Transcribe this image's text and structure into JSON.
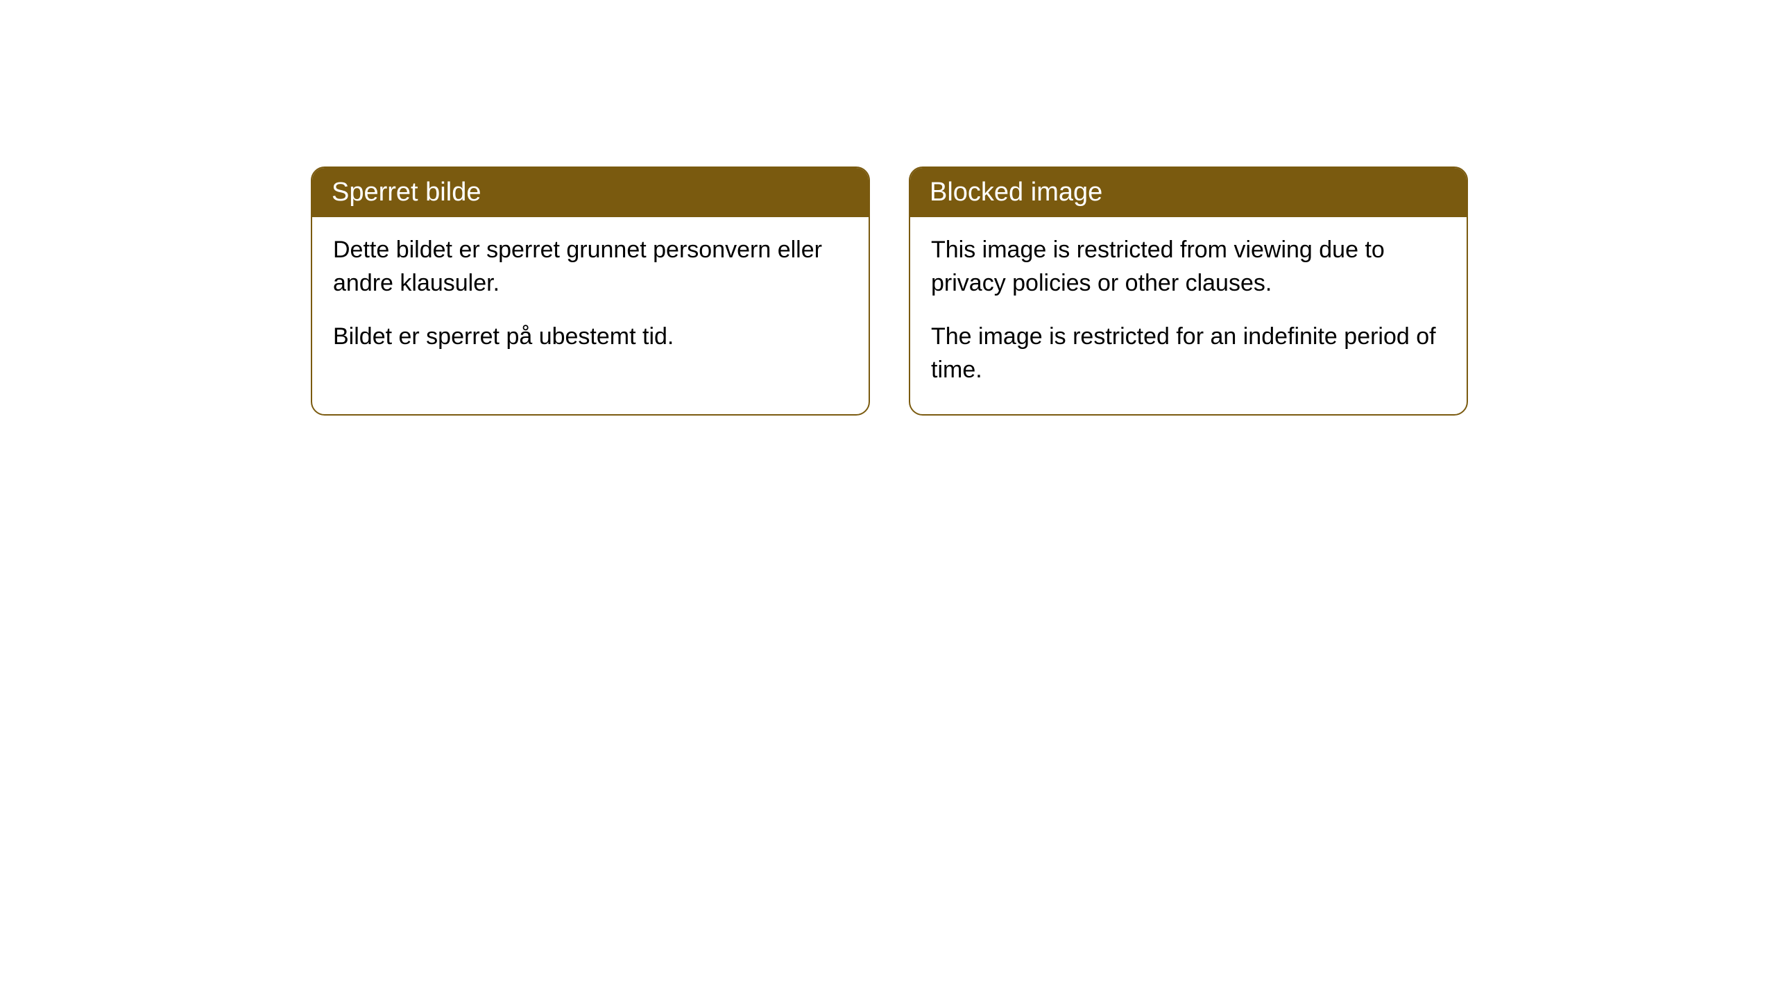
{
  "cards": [
    {
      "title": "Sperret bilde",
      "paragraph1": "Dette bildet er sperret grunnet personvern eller andre klausuler.",
      "paragraph2": "Bildet er sperret på ubestemt tid."
    },
    {
      "title": "Blocked image",
      "paragraph1": "This image is restricted from viewing due to privacy policies or other clauses.",
      "paragraph2": "The image is restricted for an indefinite period of time."
    }
  ],
  "style": {
    "header_bg_color": "#7a5a0f",
    "header_text_color": "#ffffff",
    "border_color": "#7a5a0f",
    "body_text_color": "#000000",
    "body_bg_color": "#ffffff",
    "border_radius": 20,
    "title_fontsize": 38,
    "body_fontsize": 34
  }
}
